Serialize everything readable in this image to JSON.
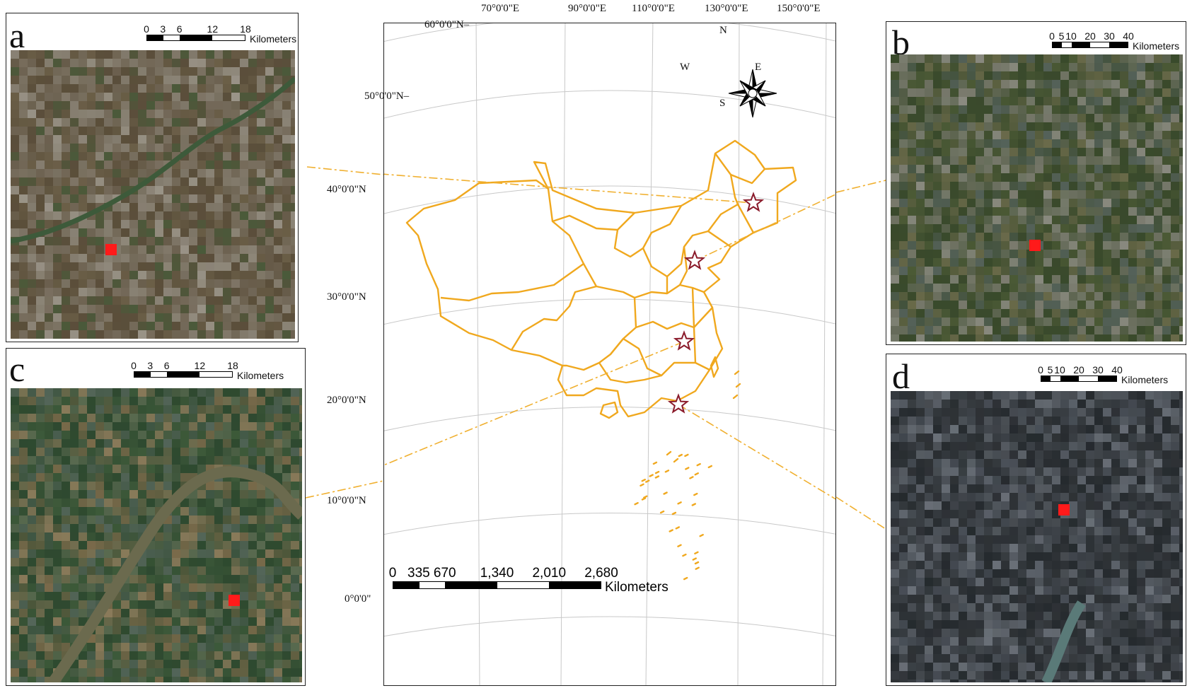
{
  "panels": {
    "a": {
      "letter": "a",
      "scale_ticks": [
        "0",
        "3",
        "6",
        "12",
        "18"
      ],
      "scale_unit": "Kilometers",
      "tones": [
        "#5b4f3b",
        "#6b5f48",
        "#7a7060",
        "#8c8578",
        "#4a5a3a",
        "#9a9488"
      ]
    },
    "b": {
      "letter": "b",
      "scale_ticks": [
        "0",
        "5",
        "10",
        "20",
        "30",
        "40"
      ],
      "scale_unit": "Kilometers",
      "tones": [
        "#3a4a2c",
        "#4c5a36",
        "#6a6a4a",
        "#7c7c70",
        "#55625a",
        "#8a8a80"
      ]
    },
    "c": {
      "letter": "c",
      "scale_ticks": [
        "0",
        "3",
        "6",
        "12",
        "18"
      ],
      "scale_unit": "Kilometers",
      "tones": [
        "#2f4a30",
        "#3e5a3a",
        "#5a6a50",
        "#7a6a4a",
        "#55665a",
        "#8a7a5a"
      ]
    },
    "d": {
      "letter": "d",
      "scale_ticks": [
        "0",
        "5",
        "10",
        "20",
        "30",
        "40"
      ],
      "scale_unit": "Kilometers",
      "tones": [
        "#2e3236",
        "#3a3f44",
        "#4a5058",
        "#5c626a",
        "#252a2e",
        "#6a7078"
      ]
    }
  },
  "main_map": {
    "lon_labels": [
      "70°0'0\"E",
      "90°0'0\"E",
      "110°0'0\"E",
      "130°0'0\"E",
      "150°0'0\"E"
    ],
    "lat_labels": [
      "60°0'0\"N",
      "50°0'0\"N",
      "40°0'0\"N",
      "30°0'0\"N",
      "20°0'0\"N",
      "10°0'0\"N",
      "0°0'0\""
    ],
    "compass": {
      "n": "N",
      "s": "S",
      "e": "E",
      "w": "W"
    },
    "scale_ticks": [
      "0",
      "335",
      "670",
      "1,340",
      "2,010",
      "2,680"
    ],
    "scale_unit": "Kilometers"
  },
  "colors": {
    "boundary": "#f0a81e",
    "marker": "#ff1a1a",
    "star": "#8a1a2a",
    "leader": "#f0b030"
  }
}
